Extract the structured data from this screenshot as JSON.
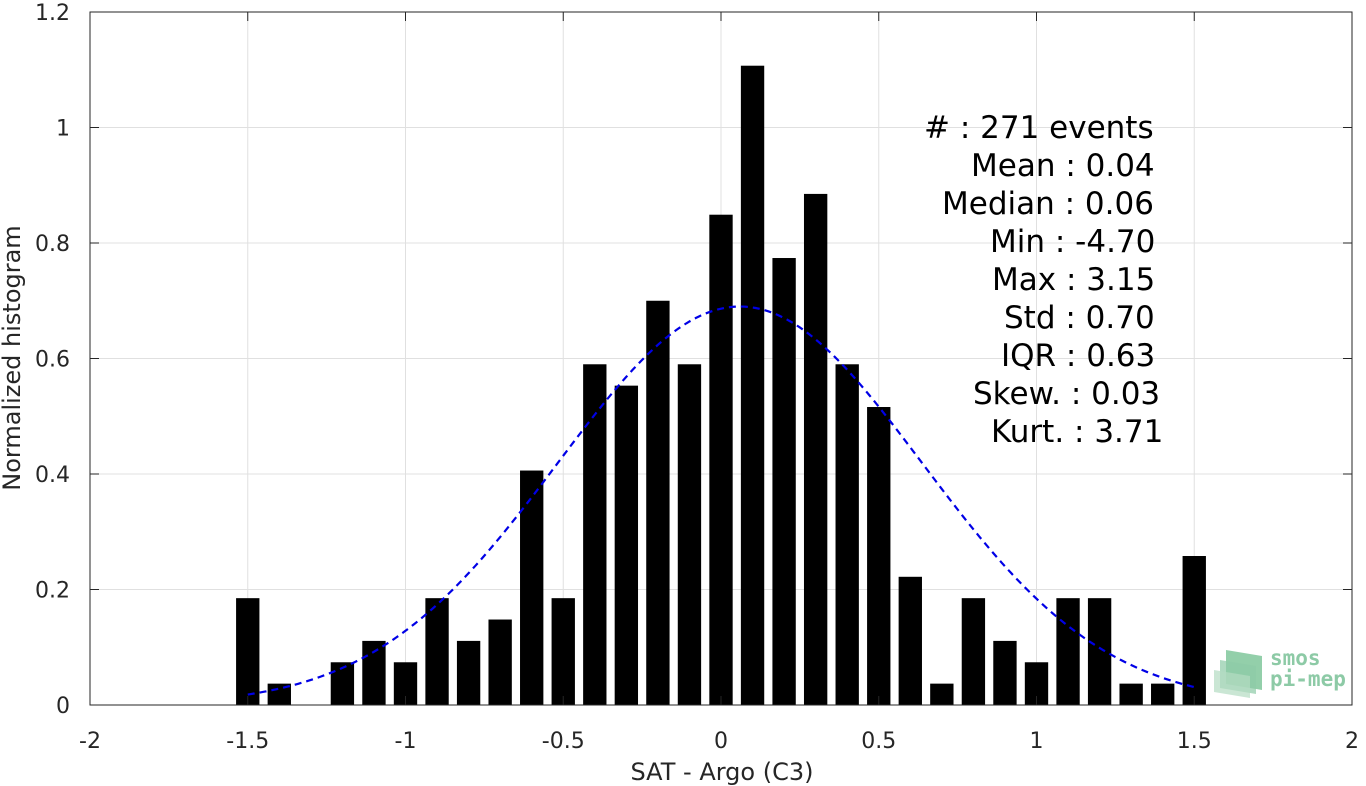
{
  "chart_data": {
    "type": "bar",
    "title": "",
    "xlabel": "SAT - Argo (C3)",
    "ylabel": "Normalized histogram",
    "xlim": [
      -2,
      2
    ],
    "ylim": [
      0,
      1.2
    ],
    "grid": true,
    "x_ticks": [
      "-2",
      "-1.5",
      "-1",
      "-0.5",
      "0",
      "0.5",
      "1",
      "1.5",
      "2"
    ],
    "y_ticks": [
      "0",
      "0.2",
      "0.4",
      "0.6",
      "0.8",
      "1",
      "1.2"
    ],
    "bar_color": "#000000",
    "bins": {
      "centers": [
        -1.5,
        -1.4,
        -1.2,
        -1.1,
        -1.0,
        -0.9,
        -0.8,
        -0.7,
        -0.6,
        -0.5,
        -0.4,
        -0.3,
        -0.2,
        -0.1,
        0.0,
        0.1,
        0.2,
        0.3,
        0.4,
        0.5,
        0.6,
        0.7,
        0.8,
        0.9,
        1.0,
        1.1,
        1.2,
        1.3,
        1.4,
        1.5
      ],
      "values": [
        0.185,
        0.037,
        0.074,
        0.111,
        0.074,
        0.185,
        0.111,
        0.148,
        0.406,
        0.185,
        0.59,
        0.553,
        0.7,
        0.59,
        0.849,
        1.107,
        0.774,
        0.885,
        0.59,
        0.516,
        0.222,
        0.037,
        0.185,
        0.111,
        0.074,
        0.185,
        0.185,
        0.037,
        0.037,
        0.258
      ]
    },
    "fit": {
      "type": "normal",
      "style": "dashed",
      "color": "#0000e6",
      "mean": 0.06,
      "peak": 0.69,
      "x_range": [
        -1.5,
        1.5
      ]
    },
    "stats_lines": [
      "#  : 271 events",
      "Mean : 0.04",
      "Median : 0.06",
      "Min : -4.70",
      "Max : 3.15",
      "Std : 0.70",
      "IQR : 0.63",
      "Skew. : 0.03",
      "Kurt. : 3.71"
    ],
    "logo": {
      "line1": "smos",
      "line2": "pi-mep",
      "color": "#8dcaa6"
    }
  }
}
